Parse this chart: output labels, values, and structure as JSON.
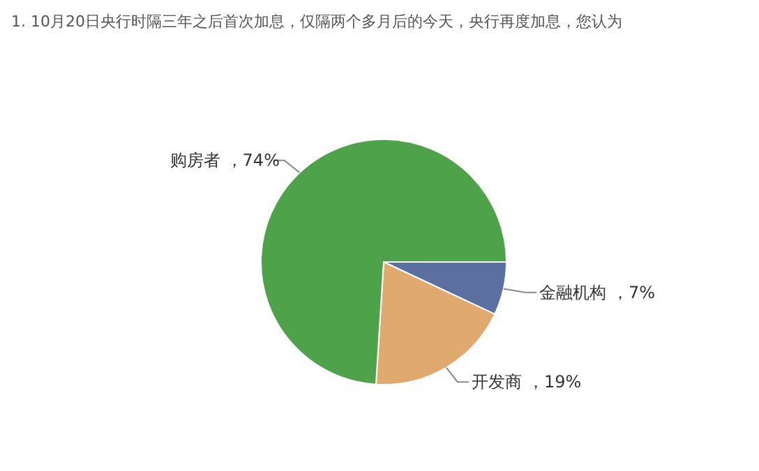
{
  "chart_data": {
    "type": "pie",
    "title": "1. 10月20日央行时隔三年之后首次加息，仅隔两个多月后的今天，央行再度加息，您认为",
    "categories": [
      "金融机构",
      "开发商",
      "购房者"
    ],
    "values": [
      7,
      19,
      74
    ],
    "value_labels": [
      "，7%",
      "，19%",
      "，74%"
    ],
    "colors": [
      "#5b6fa0",
      "#e0a96e",
      "#4ea24a"
    ],
    "legend": false
  }
}
